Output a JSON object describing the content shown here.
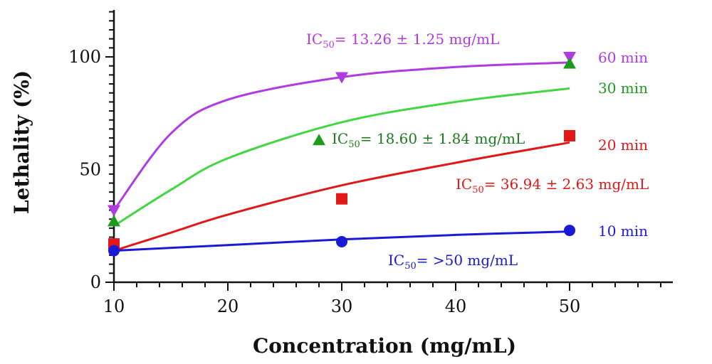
{
  "chart_data": {
    "type": "line",
    "xlabel": "Concentration (mg/mL)",
    "ylabel": "Lethality (%)",
    "xlim": [
      10,
      60
    ],
    "ylim": [
      0,
      120
    ],
    "x_ticks": [
      "10",
      "20",
      "30",
      "40",
      "50"
    ],
    "y_ticks": [
      "0",
      "50",
      "100"
    ],
    "grid": false,
    "legend_placement": "right",
    "series": [
      {
        "name": "60 min",
        "color": "#b03be0",
        "marker": "triangle-down",
        "x": [
          10,
          30,
          50
        ],
        "y": [
          32,
          91,
          100
        ],
        "curve": [
          [
            10,
            32
          ],
          [
            15,
            66
          ],
          [
            20,
            81
          ],
          [
            30,
            91
          ],
          [
            40,
            95.5
          ],
          [
            50,
            97.5
          ]
        ],
        "annotation": {
          "prefix": "IC",
          "sub": "50",
          "text": "= 13.26 ± 1.25 mg/mL",
          "color": "#b03be0"
        }
      },
      {
        "name": "30 min",
        "color": "#1e9a1e",
        "line_color": "#43d643",
        "marker": "triangle-up",
        "x": [
          10,
          28,
          50
        ],
        "y": [
          27,
          63,
          97
        ],
        "curve": [
          [
            10,
            25
          ],
          [
            15,
            41
          ],
          [
            20,
            55
          ],
          [
            30,
            71
          ],
          [
            40,
            80
          ],
          [
            50,
            86
          ]
        ],
        "annotation": {
          "prefix": "IC",
          "sub": "50",
          "text": "= 18.60 ± 1.84 mg/mL",
          "color": "#1e7a1e"
        }
      },
      {
        "name": "20 min",
        "color": "#e01818",
        "marker": "square",
        "x": [
          10,
          30,
          50
        ],
        "y": [
          17,
          37,
          65
        ],
        "curve": [
          [
            10,
            14
          ],
          [
            15,
            22
          ],
          [
            20,
            30
          ],
          [
            30,
            43
          ],
          [
            40,
            53
          ],
          [
            50,
            62
          ]
        ],
        "annotation": {
          "prefix": "IC",
          "sub": "50",
          "text": "= 36.94 ± 2.63 mg/mL",
          "color": "#e01818"
        }
      },
      {
        "name": "10 min",
        "color": "#1a1ad6",
        "marker": "circle",
        "x": [
          10,
          30,
          50
        ],
        "y": [
          14,
          18,
          23
        ],
        "curve": [
          [
            10,
            14
          ],
          [
            20,
            16.5
          ],
          [
            30,
            19
          ],
          [
            40,
            21
          ],
          [
            50,
            22.5
          ]
        ],
        "annotation": {
          "prefix": "IC",
          "sub": "50",
          "text": "= >50 mg/mL",
          "color": "#1a1ad6"
        }
      }
    ]
  }
}
